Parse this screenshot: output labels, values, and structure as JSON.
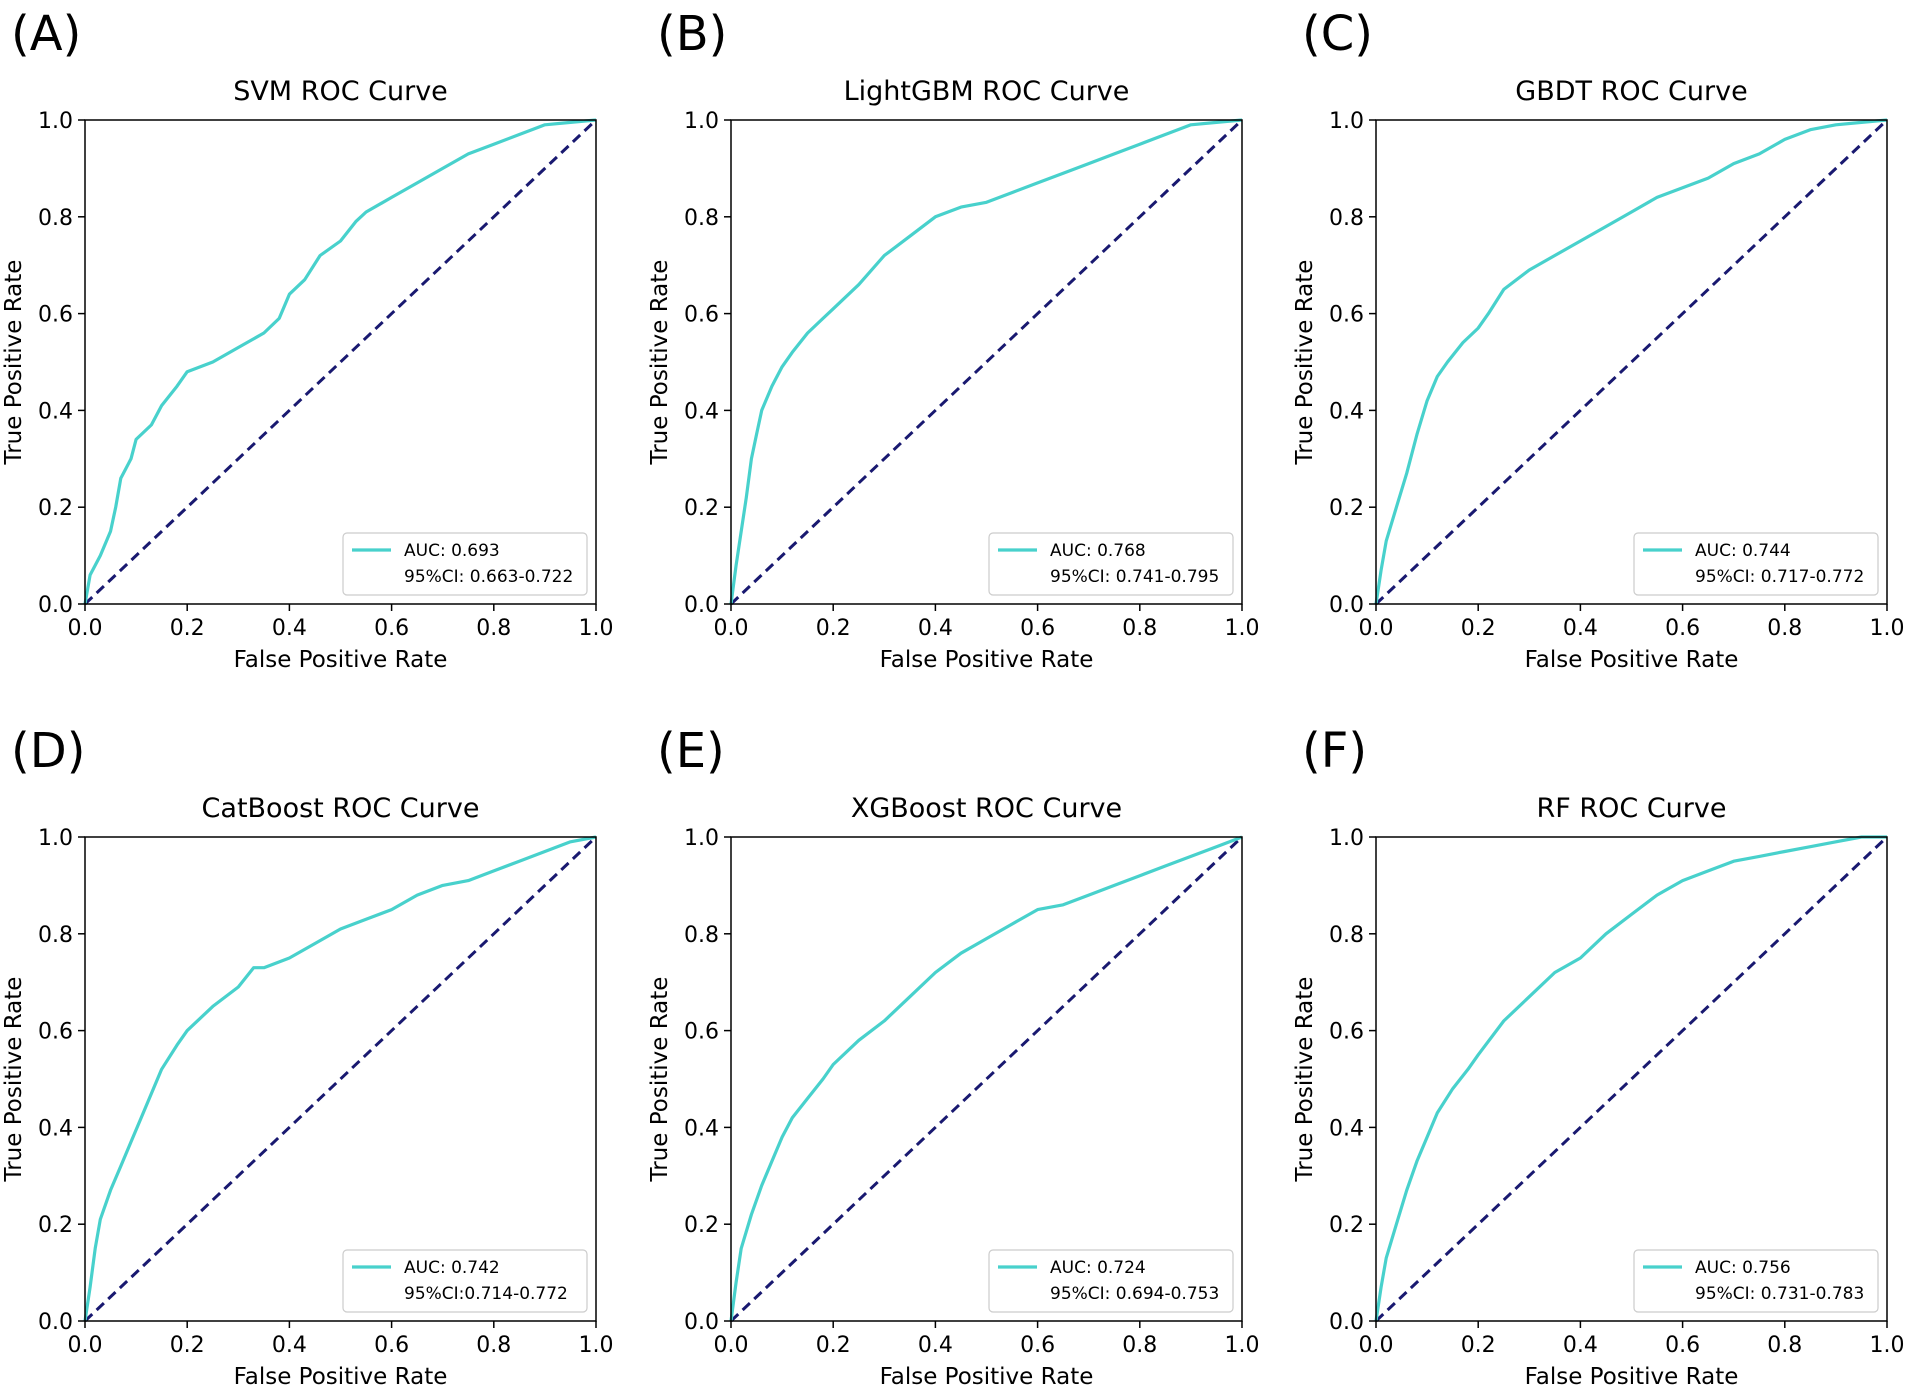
{
  "colors": {
    "roc": "#48D1CC",
    "diagonal": "#191970",
    "axes": "#000000",
    "legend_border": "#cccccc"
  },
  "chart_data": [
    {
      "type": "line",
      "panel": "(A)",
      "title": "SVM ROC Curve",
      "xlabel": "False Positive Rate",
      "ylabel": "True Positive Rate",
      "xlim": [
        0,
        1
      ],
      "ylim": [
        0,
        1
      ],
      "xticks": [
        "0.0",
        "0.2",
        "0.4",
        "0.6",
        "0.8",
        "1.0"
      ],
      "yticks": [
        "0.0",
        "0.2",
        "0.4",
        "0.6",
        "0.8",
        "1.0"
      ],
      "legend": {
        "auc": "AUC: 0.693",
        "ci": "95%CI: 0.663-0.722",
        "location": "lower right"
      },
      "series": [
        {
          "name": "ROC",
          "x": [
            0,
            0.01,
            0.03,
            0.05,
            0.06,
            0.07,
            0.09,
            0.1,
            0.13,
            0.15,
            0.18,
            0.2,
            0.25,
            0.3,
            0.35,
            0.38,
            0.4,
            0.43,
            0.46,
            0.5,
            0.53,
            0.55,
            0.6,
            0.65,
            0.7,
            0.75,
            0.8,
            0.85,
            0.9,
            0.95,
            1.0
          ],
          "y": [
            0,
            0.06,
            0.1,
            0.15,
            0.2,
            0.26,
            0.3,
            0.34,
            0.37,
            0.41,
            0.45,
            0.48,
            0.5,
            0.53,
            0.56,
            0.59,
            0.64,
            0.67,
            0.72,
            0.75,
            0.79,
            0.81,
            0.84,
            0.87,
            0.9,
            0.93,
            0.95,
            0.97,
            0.99,
            0.995,
            1.0
          ]
        },
        {
          "name": "Chance",
          "x": [
            0,
            1
          ],
          "y": [
            0,
            1
          ]
        }
      ]
    },
    {
      "type": "line",
      "panel": "(B)",
      "title": "LightGBM ROC Curve",
      "xlabel": "False Positive Rate",
      "ylabel": "True Positive Rate",
      "xlim": [
        0,
        1
      ],
      "ylim": [
        0,
        1
      ],
      "xticks": [
        "0.0",
        "0.2",
        "0.4",
        "0.6",
        "0.8",
        "1.0"
      ],
      "yticks": [
        "0.0",
        "0.2",
        "0.4",
        "0.6",
        "0.8",
        "1.0"
      ],
      "legend": {
        "auc": "AUC: 0.768",
        "ci": "95%CI: 0.741-0.795",
        "location": "lower right"
      },
      "series": [
        {
          "name": "ROC",
          "x": [
            0,
            0.01,
            0.02,
            0.03,
            0.04,
            0.05,
            0.06,
            0.08,
            0.1,
            0.12,
            0.15,
            0.18,
            0.2,
            0.25,
            0.3,
            0.35,
            0.4,
            0.45,
            0.5,
            0.55,
            0.6,
            0.65,
            0.7,
            0.75,
            0.8,
            0.85,
            0.9,
            0.95,
            1.0
          ],
          "y": [
            0,
            0.08,
            0.15,
            0.22,
            0.3,
            0.35,
            0.4,
            0.45,
            0.49,
            0.52,
            0.56,
            0.59,
            0.61,
            0.66,
            0.72,
            0.76,
            0.8,
            0.82,
            0.83,
            0.85,
            0.87,
            0.89,
            0.91,
            0.93,
            0.95,
            0.97,
            0.99,
            0.995,
            1.0
          ]
        },
        {
          "name": "Chance",
          "x": [
            0,
            1
          ],
          "y": [
            0,
            1
          ]
        }
      ]
    },
    {
      "type": "line",
      "panel": "(C)",
      "title": "GBDT ROC Curve",
      "xlabel": "False Positive Rate",
      "ylabel": "True Positive Rate",
      "xlim": [
        0,
        1
      ],
      "ylim": [
        0,
        1
      ],
      "xticks": [
        "0.0",
        "0.2",
        "0.4",
        "0.6",
        "0.8",
        "1.0"
      ],
      "yticks": [
        "0.0",
        "0.2",
        "0.4",
        "0.6",
        "0.8",
        "1.0"
      ],
      "legend": {
        "auc": "AUC: 0.744",
        "ci": "95%CI: 0.717-0.772",
        "location": "lower right"
      },
      "series": [
        {
          "name": "ROC",
          "x": [
            0,
            0.01,
            0.02,
            0.04,
            0.06,
            0.08,
            0.1,
            0.12,
            0.14,
            0.17,
            0.2,
            0.22,
            0.25,
            0.3,
            0.35,
            0.4,
            0.45,
            0.5,
            0.55,
            0.6,
            0.65,
            0.7,
            0.75,
            0.8,
            0.85,
            0.9,
            0.95,
            1.0
          ],
          "y": [
            0,
            0.07,
            0.13,
            0.2,
            0.27,
            0.35,
            0.42,
            0.47,
            0.5,
            0.54,
            0.57,
            0.6,
            0.65,
            0.69,
            0.72,
            0.75,
            0.78,
            0.81,
            0.84,
            0.86,
            0.88,
            0.91,
            0.93,
            0.96,
            0.98,
            0.99,
            0.995,
            1.0
          ]
        },
        {
          "name": "Chance",
          "x": [
            0,
            1
          ],
          "y": [
            0,
            1
          ]
        }
      ]
    },
    {
      "type": "line",
      "panel": "(D)",
      "title": "CatBoost ROC Curve",
      "xlabel": "False Positive Rate",
      "ylabel": "True Positive Rate",
      "xlim": [
        0,
        1
      ],
      "ylim": [
        0,
        1
      ],
      "xticks": [
        "0.0",
        "0.2",
        "0.4",
        "0.6",
        "0.8",
        "1.0"
      ],
      "yticks": [
        "0.0",
        "0.2",
        "0.4",
        "0.6",
        "0.8",
        "1.0"
      ],
      "legend": {
        "auc": "AUC: 0.742",
        "ci": "95%CI:0.714-0.772",
        "location": "lower right"
      },
      "series": [
        {
          "name": "ROC",
          "x": [
            0,
            0.01,
            0.02,
            0.03,
            0.05,
            0.07,
            0.09,
            0.11,
            0.13,
            0.15,
            0.18,
            0.2,
            0.25,
            0.3,
            0.33,
            0.35,
            0.4,
            0.45,
            0.5,
            0.55,
            0.6,
            0.65,
            0.7,
            0.75,
            0.8,
            0.85,
            0.9,
            0.95,
            1.0
          ],
          "y": [
            0,
            0.07,
            0.15,
            0.21,
            0.27,
            0.32,
            0.37,
            0.42,
            0.47,
            0.52,
            0.57,
            0.6,
            0.65,
            0.69,
            0.73,
            0.73,
            0.75,
            0.78,
            0.81,
            0.83,
            0.85,
            0.88,
            0.9,
            0.91,
            0.93,
            0.95,
            0.97,
            0.99,
            1.0
          ]
        },
        {
          "name": "Chance",
          "x": [
            0,
            1
          ],
          "y": [
            0,
            1
          ]
        }
      ]
    },
    {
      "type": "line",
      "panel": "(E)",
      "title": "XGBoost ROC Curve",
      "xlabel": "False Positive Rate",
      "ylabel": "True Positive Rate",
      "xlim": [
        0,
        1
      ],
      "ylim": [
        0,
        1
      ],
      "xticks": [
        "0.0",
        "0.2",
        "0.4",
        "0.6",
        "0.8",
        "1.0"
      ],
      "yticks": [
        "0.0",
        "0.2",
        "0.4",
        "0.6",
        "0.8",
        "1.0"
      ],
      "legend": {
        "auc": "AUC: 0.724",
        "ci": "95%CI: 0.694-0.753",
        "location": "lower right"
      },
      "series": [
        {
          "name": "ROC",
          "x": [
            0,
            0.01,
            0.02,
            0.04,
            0.06,
            0.08,
            0.1,
            0.12,
            0.15,
            0.18,
            0.2,
            0.25,
            0.3,
            0.35,
            0.4,
            0.45,
            0.5,
            0.55,
            0.6,
            0.65,
            0.7,
            0.75,
            0.8,
            0.85,
            0.9,
            0.95,
            1.0
          ],
          "y": [
            0,
            0.08,
            0.15,
            0.22,
            0.28,
            0.33,
            0.38,
            0.42,
            0.46,
            0.5,
            0.53,
            0.58,
            0.62,
            0.67,
            0.72,
            0.76,
            0.79,
            0.82,
            0.85,
            0.86,
            0.88,
            0.9,
            0.92,
            0.94,
            0.96,
            0.98,
            1.0
          ]
        },
        {
          "name": "Chance",
          "x": [
            0,
            1
          ],
          "y": [
            0,
            1
          ]
        }
      ]
    },
    {
      "type": "line",
      "panel": "(F)",
      "title": "RF ROC Curve",
      "xlabel": "False Positive Rate",
      "ylabel": "True Positive Rate",
      "xlim": [
        0,
        1
      ],
      "ylim": [
        0,
        1
      ],
      "xticks": [
        "0.0",
        "0.2",
        "0.4",
        "0.6",
        "0.8",
        "1.0"
      ],
      "yticks": [
        "0.0",
        "0.2",
        "0.4",
        "0.6",
        "0.8",
        "1.0"
      ],
      "legend": {
        "auc": "AUC: 0.756",
        "ci": "95%CI: 0.731-0.783",
        "location": "lower right"
      },
      "series": [
        {
          "name": "ROC",
          "x": [
            0,
            0.01,
            0.02,
            0.04,
            0.06,
            0.08,
            0.1,
            0.12,
            0.15,
            0.18,
            0.2,
            0.25,
            0.3,
            0.35,
            0.4,
            0.45,
            0.5,
            0.55,
            0.6,
            0.65,
            0.7,
            0.75,
            0.8,
            0.85,
            0.9,
            0.95,
            1.0
          ],
          "y": [
            0,
            0.07,
            0.13,
            0.2,
            0.27,
            0.33,
            0.38,
            0.43,
            0.48,
            0.52,
            0.55,
            0.62,
            0.67,
            0.72,
            0.75,
            0.8,
            0.84,
            0.88,
            0.91,
            0.93,
            0.95,
            0.96,
            0.97,
            0.98,
            0.99,
            1.0,
            1.0
          ]
        },
        {
          "name": "Chance",
          "x": [
            0,
            1
          ],
          "y": [
            0,
            1
          ]
        }
      ]
    }
  ]
}
